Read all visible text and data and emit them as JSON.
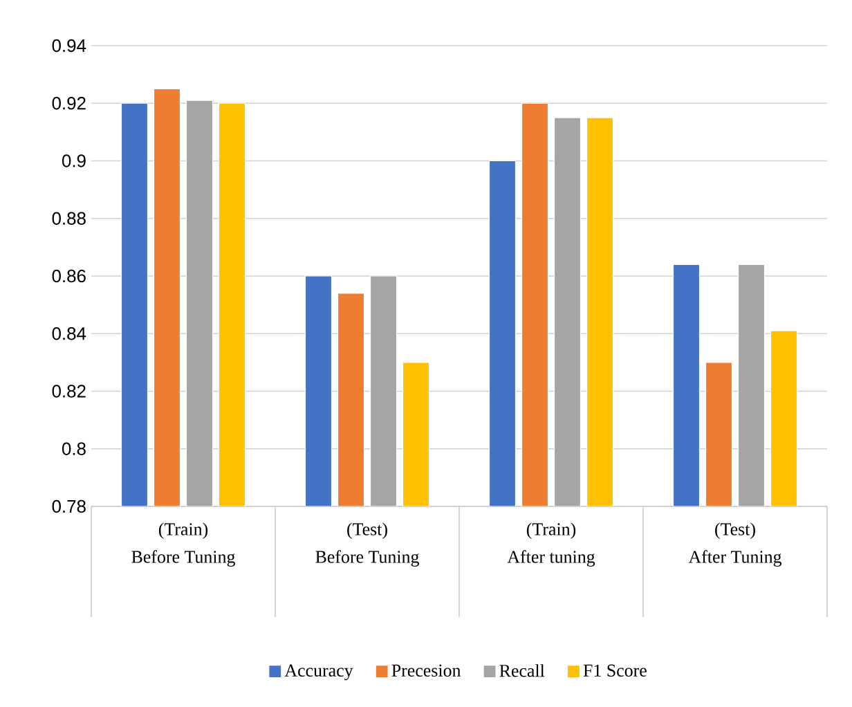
{
  "chart_data": {
    "type": "bar",
    "categories": [
      "(Train) Before Tuning",
      "(Test) Before Tuning",
      "(Train) After tuning",
      "(Test) After Tuning"
    ],
    "series": [
      {
        "name": "Accuracy",
        "color": "#4472c4",
        "values": [
          0.92,
          0.86,
          0.9,
          0.864
        ]
      },
      {
        "name": "Precesion",
        "color": "#ed7d31",
        "values": [
          0.925,
          0.854,
          0.92,
          0.83
        ]
      },
      {
        "name": "Recall",
        "color": "#a5a5a5",
        "values": [
          0.921,
          0.86,
          0.915,
          0.864
        ]
      },
      {
        "name": "F1 Score",
        "color": "#ffc000",
        "values": [
          0.92,
          0.83,
          0.915,
          0.841
        ]
      }
    ],
    "ylim": [
      0.78,
      0.94
    ],
    "yticks": [
      0.78,
      0.8,
      0.82,
      0.84,
      0.86,
      0.88,
      0.9,
      0.92,
      0.94
    ],
    "grid": "y",
    "legend": "bottom"
  }
}
